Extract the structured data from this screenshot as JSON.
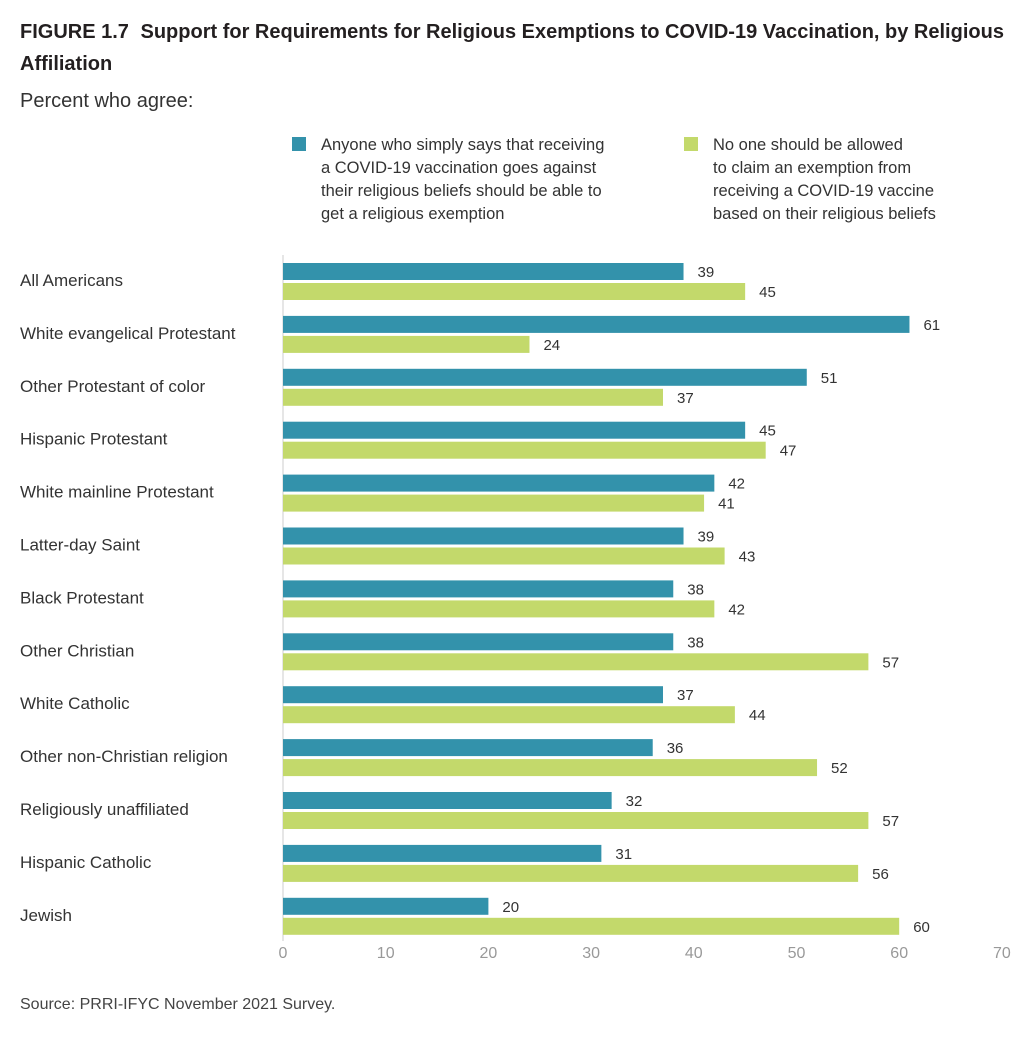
{
  "figure": {
    "label": "FIGURE 1.7",
    "title": "Support for Requirements for Religious Exemptions to COVID-19 Vaccination, by Religious Affiliation",
    "subtitle": "Percent who agree:",
    "source": "Source: PRRI-IFYC November 2021 Survey."
  },
  "legend": {
    "items": [
      {
        "lines": [
          "Anyone who simply says that receiving",
          "a COVID-19 vaccination goes against",
          "their religious beliefs should be able to",
          "get a religious exemption"
        ],
        "color": "#3392ab"
      },
      {
        "lines": [
          "No one should be allowed",
          "to claim an exemption from",
          "receiving a COVID-19 vaccine",
          "based on their religious beliefs"
        ],
        "color": "#c3d96b"
      }
    ]
  },
  "chart_data": {
    "type": "bar",
    "orientation": "horizontal",
    "categories": [
      "All Americans",
      "White evangelical Protestant",
      "Other Protestant of color",
      "Hispanic Protestant",
      "White mainline Protestant",
      "Latter-day Saint",
      "Black Protestant",
      "Other Christian",
      "White Catholic",
      "Other non-Christian religion",
      "Religiously unaffiliated",
      "Hispanic Catholic",
      "Jewish"
    ],
    "series": [
      {
        "name": "Anyone who simply says that receiving a COVID-19 vaccination goes against their religious beliefs should be able to get a religious exemption",
        "color": "#3392ab",
        "values": [
          39,
          61,
          51,
          45,
          42,
          39,
          38,
          38,
          37,
          36,
          32,
          31,
          20
        ]
      },
      {
        "name": "No one should be allowed to claim an exemption from receiving a COVID-19 vaccine based on their religious beliefs",
        "color": "#c3d96b",
        "values": [
          45,
          24,
          37,
          47,
          41,
          43,
          42,
          57,
          44,
          52,
          57,
          56,
          60
        ]
      }
    ],
    "xlim": [
      0,
      70
    ],
    "xticks": [
      0,
      10,
      20,
      30,
      40,
      50,
      60,
      70
    ],
    "data_labels": true,
    "grid": false
  }
}
